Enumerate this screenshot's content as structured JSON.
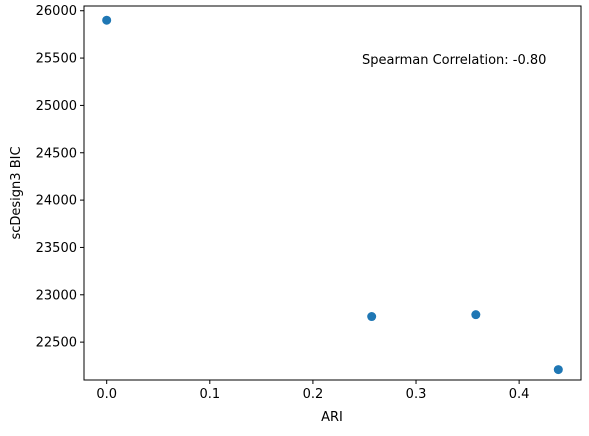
{
  "chart_data": {
    "type": "scatter",
    "title": "",
    "xlabel": "ARI",
    "ylabel": "scDesign3 BIC",
    "xlim": [
      -0.022,
      0.46
    ],
    "ylim": [
      22100,
      26050
    ],
    "x_ticks": [
      0.0,
      0.1,
      0.2,
      0.3,
      0.4
    ],
    "x_tick_labels": [
      "0.0",
      "0.1",
      "0.2",
      "0.3",
      "0.4"
    ],
    "y_ticks": [
      22500,
      23000,
      23500,
      24000,
      24500,
      25000,
      25500,
      26000
    ],
    "y_tick_labels": [
      "22500",
      "23000",
      "23500",
      "24000",
      "24500",
      "25000",
      "25500",
      "26000"
    ],
    "grid": false,
    "marker_color": "#1f77b4",
    "points": [
      {
        "x": 0.0,
        "y": 25900
      },
      {
        "x": 0.257,
        "y": 22770
      },
      {
        "x": 0.358,
        "y": 22790
      },
      {
        "x": 0.438,
        "y": 22210
      }
    ],
    "annotation": "Spearman Correlation: -0.80"
  }
}
